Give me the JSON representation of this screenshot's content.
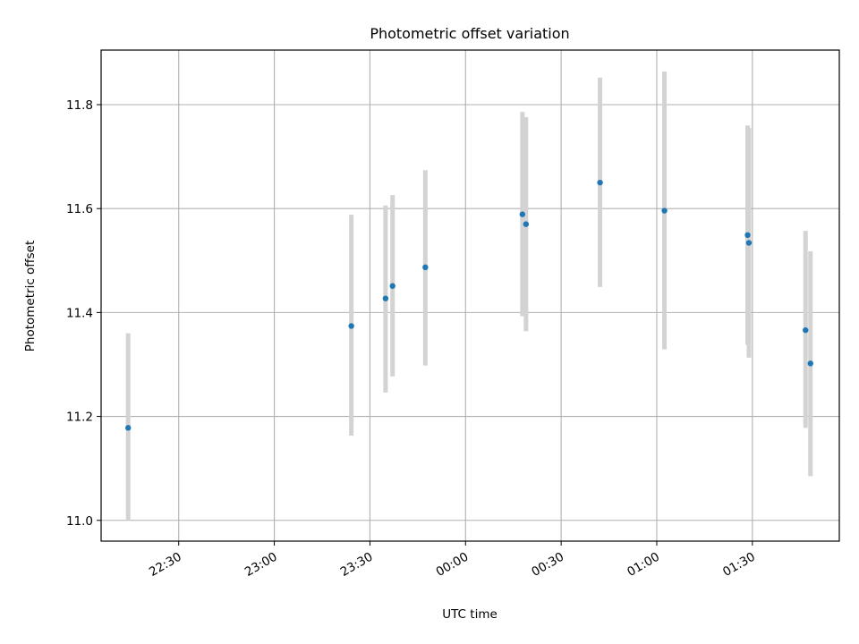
{
  "chart_data": {
    "type": "scatter",
    "title": "Photometric offset variation",
    "xlabel": "UTC time",
    "ylabel": "Photometric offset",
    "xlim": [
      "22:05:39",
      "01:57:17"
    ],
    "ylim": [
      10.96,
      11.905
    ],
    "grid": true,
    "x_ticks": [
      {
        "t": "22:30",
        "label": "22:30"
      },
      {
        "t": "23:00",
        "label": "23:00"
      },
      {
        "t": "23:30",
        "label": "23:30"
      },
      {
        "t": "00:00",
        "label": "00:00"
      },
      {
        "t": "00:30",
        "label": "00:30"
      },
      {
        "t": "01:00",
        "label": "01:00"
      },
      {
        "t": "01:30",
        "label": "01:30"
      }
    ],
    "y_ticks": [
      {
        "v": 11.0,
        "label": "11.0"
      },
      {
        "v": 11.2,
        "label": "11.2"
      },
      {
        "v": 11.4,
        "label": "11.4"
      },
      {
        "v": 11.6,
        "label": "11.6"
      },
      {
        "v": 11.8,
        "label": "11.8"
      }
    ],
    "series": [
      {
        "marker_color": "#1f77b4",
        "errorbar_color": "#d3d3d3",
        "points": [
          {
            "t": "22:14:08",
            "y": 11.178,
            "lo": 11.0,
            "hi": 11.36
          },
          {
            "t": "23:24:10",
            "y": 11.374,
            "lo": 11.163,
            "hi": 11.588
          },
          {
            "t": "23:34:54",
            "y": 11.427,
            "lo": 11.246,
            "hi": 11.606
          },
          {
            "t": "23:37:06",
            "y": 11.451,
            "lo": 11.277,
            "hi": 11.626
          },
          {
            "t": "23:47:23",
            "y": 11.487,
            "lo": 11.298,
            "hi": 11.674
          },
          {
            "t": "00:17:51",
            "y": 11.589,
            "lo": 11.393,
            "hi": 11.786
          },
          {
            "t": "00:18:58",
            "y": 11.57,
            "lo": 11.364,
            "hi": 11.776
          },
          {
            "t": "00:42:12",
            "y": 11.65,
            "lo": 11.449,
            "hi": 11.852
          },
          {
            "t": "01:02:25",
            "y": 11.596,
            "lo": 11.329,
            "hi": 11.864
          },
          {
            "t": "01:28:31",
            "y": 11.549,
            "lo": 11.338,
            "hi": 11.76
          },
          {
            "t": "01:28:55",
            "y": 11.534,
            "lo": 11.313,
            "hi": 11.755
          },
          {
            "t": "01:46:41",
            "y": 11.366,
            "lo": 11.178,
            "hi": 11.557
          },
          {
            "t": "01:48:14",
            "y": 11.302,
            "lo": 11.085,
            "hi": 11.518
          }
        ]
      }
    ]
  }
}
